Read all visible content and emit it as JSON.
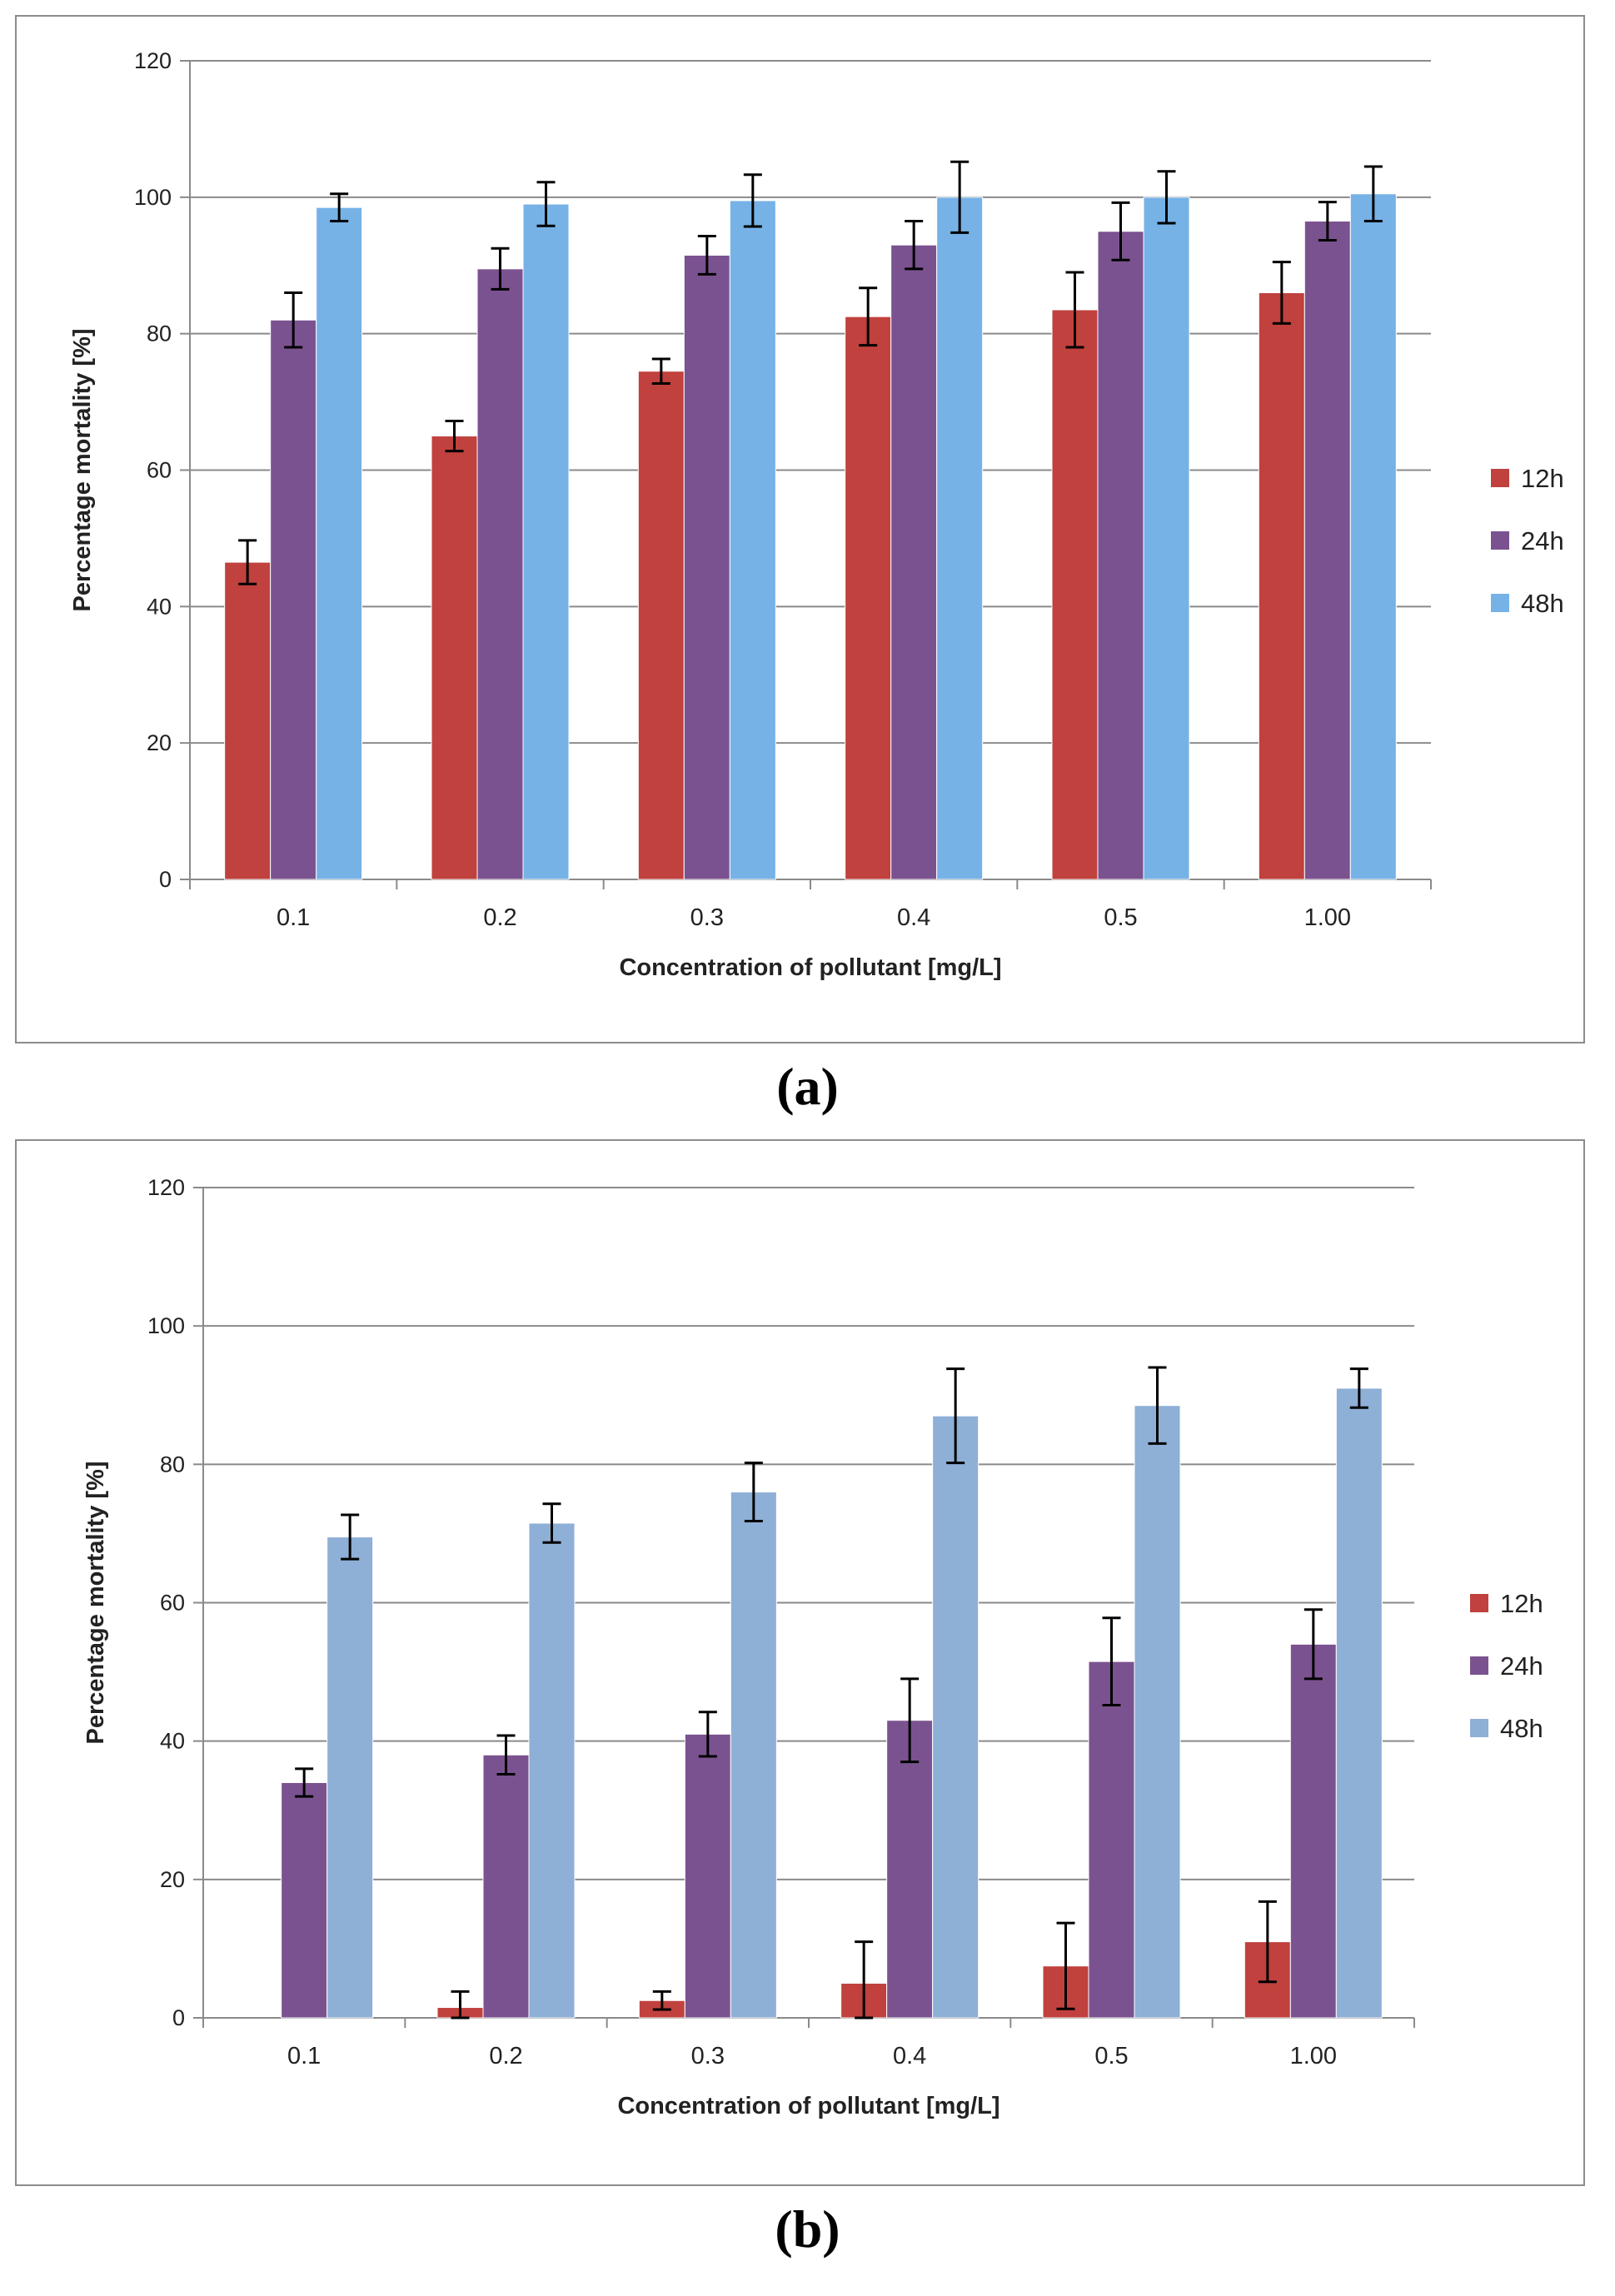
{
  "chart_data": [
    {
      "type": "bar",
      "panel_label": "(a)",
      "title": "",
      "xlabel": "Concentration of pollutant [mg/L]",
      "ylabel": "Percentage mortality [%]",
      "ylim": [
        0,
        120
      ],
      "yticks": [
        0,
        20,
        40,
        60,
        80,
        100,
        120
      ],
      "categories": [
        "0.1",
        "0.2",
        "0.3",
        "0.4",
        "0.5",
        "1.00"
      ],
      "series": [
        {
          "name": "12h",
          "color": "#c0413d",
          "values": [
            46.5,
            65,
            74.5,
            82.5,
            83.5,
            86
          ],
          "errors": [
            3.2,
            2.2,
            1.8,
            4.2,
            5.5,
            4.5
          ]
        },
        {
          "name": "24h",
          "color": "#7b5290",
          "values": [
            82,
            89.5,
            91.5,
            93,
            95,
            96.5
          ],
          "errors": [
            4,
            3,
            2.8,
            3.5,
            4.2,
            2.8
          ]
        },
        {
          "name": "48h",
          "color": "#76b2e6",
          "values": [
            98.5,
            99,
            99.5,
            100,
            100,
            100.5
          ],
          "errors": [
            2,
            3.2,
            3.8,
            5.2,
            3.8,
            4
          ]
        }
      ],
      "legend_position": "right",
      "grid": true
    },
    {
      "type": "bar",
      "panel_label": "(b)",
      "title": "",
      "xlabel": "Concentration of pollutant [mg/L]",
      "ylabel": "Percentage mortality [%]",
      "ylim": [
        0,
        120
      ],
      "yticks": [
        0,
        20,
        40,
        60,
        80,
        100,
        120
      ],
      "categories": [
        "0.1",
        "0.2",
        "0.3",
        "0.4",
        "0.5",
        "1.00"
      ],
      "series": [
        {
          "name": "12h",
          "color": "#c0413d",
          "values": [
            0,
            1.5,
            2.5,
            5,
            7.5,
            11
          ],
          "errors": [
            0,
            2.3,
            1.3,
            6,
            6.2,
            5.8
          ]
        },
        {
          "name": "24h",
          "color": "#7b5290",
          "values": [
            34,
            38,
            41,
            43,
            51.5,
            54
          ],
          "errors": [
            2,
            2.8,
            3.2,
            6,
            6.3,
            5
          ]
        },
        {
          "name": "48h",
          "color": "#8eafd6",
          "values": [
            69.5,
            71.5,
            76,
            87,
            88.5,
            91
          ],
          "errors": [
            3.2,
            2.8,
            4.2,
            6.8,
            5.5,
            2.8
          ]
        }
      ],
      "legend_position": "right",
      "grid": true
    }
  ]
}
